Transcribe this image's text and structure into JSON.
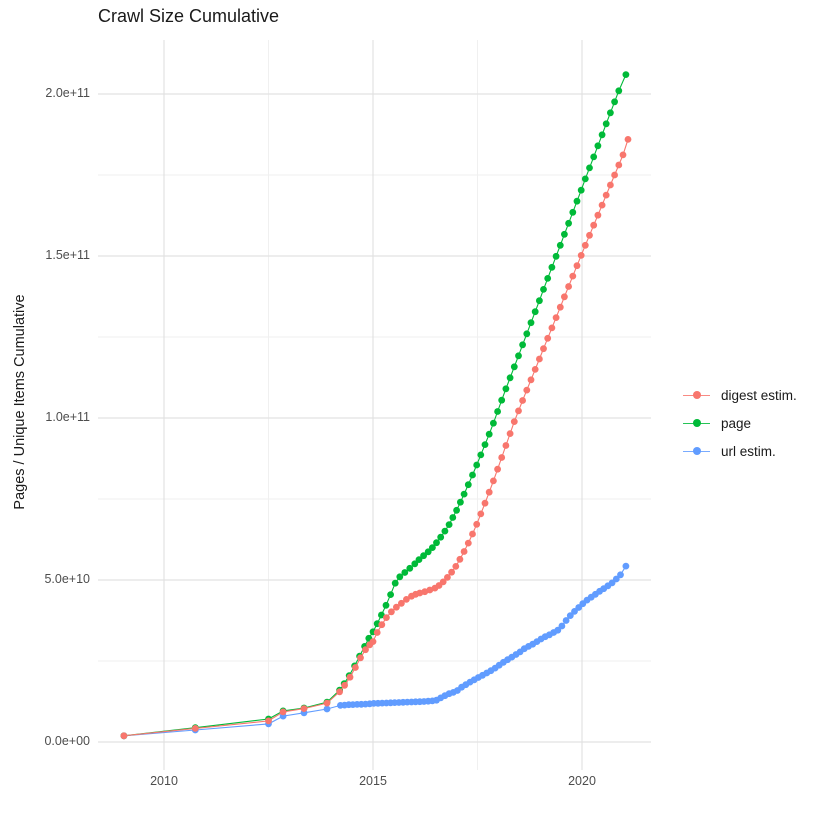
{
  "title": "Crawl Size Cumulative",
  "legend": {
    "items": [
      {
        "label": "digest estim.",
        "color": "#F8766D"
      },
      {
        "label": "page",
        "color": "#00BA38"
      },
      {
        "label": "url estim.",
        "color": "#619CFF"
      }
    ]
  },
  "chart_data": {
    "type": "scatter",
    "title": "Crawl Size Cumulative",
    "xlabel": "",
    "ylabel": "Pages / Unique Items Cumulative",
    "point_units": "x = year (decimal), y = cumulative items in billions (1e9)",
    "grid": "on",
    "legend_position": "right",
    "axes": {
      "x": {
        "range": [
          2008.4,
          2021.65
        ],
        "ticks": [
          {
            "label": "2010",
            "value": 2010
          },
          {
            "label": "2015",
            "value": 2015
          },
          {
            "label": "2020",
            "value": 2020
          }
        ],
        "minor": [
          2012.5,
          2017.5
        ]
      },
      "y": {
        "range": [
          -8.6,
          216.7
        ],
        "ticks": [
          {
            "label": "0.0e+00",
            "value": 0
          },
          {
            "label": "5.0e+10",
            "value": 50
          },
          {
            "label": "1.0e+11",
            "value": 100
          },
          {
            "label": "1.5e+11",
            "value": 150
          },
          {
            "label": "2.0e+11",
            "value": 200
          }
        ],
        "minor": [
          25,
          75,
          125,
          175
        ]
      }
    },
    "series": [
      {
        "name": "url estim.",
        "color": "#619CFF",
        "points": [
          [
            2009.04,
            1.9
          ],
          [
            2010.75,
            3.7
          ],
          [
            2012.5,
            5.6
          ],
          [
            2012.85,
            8.0
          ],
          [
            2013.35,
            9.0
          ],
          [
            2013.9,
            10.2
          ],
          [
            2014.22,
            11.3
          ],
          [
            2014.32,
            11.4
          ],
          [
            2014.42,
            11.5
          ],
          [
            2014.52,
            11.55
          ],
          [
            2014.62,
            11.6
          ],
          [
            2014.72,
            11.65
          ],
          [
            2014.82,
            11.7
          ],
          [
            2014.92,
            11.8
          ],
          [
            2015.02,
            11.9
          ],
          [
            2015.12,
            11.95
          ],
          [
            2015.22,
            12.0
          ],
          [
            2015.32,
            12.05
          ],
          [
            2015.42,
            12.1
          ],
          [
            2015.52,
            12.15
          ],
          [
            2015.62,
            12.2
          ],
          [
            2015.72,
            12.25
          ],
          [
            2015.82,
            12.3
          ],
          [
            2015.92,
            12.35
          ],
          [
            2016.02,
            12.4
          ],
          [
            2016.12,
            12.45
          ],
          [
            2016.22,
            12.5
          ],
          [
            2016.32,
            12.6
          ],
          [
            2016.42,
            12.7
          ],
          [
            2016.52,
            12.9
          ],
          [
            2016.62,
            13.6
          ],
          [
            2016.72,
            14.3
          ],
          [
            2016.82,
            14.9
          ],
          [
            2016.92,
            15.3
          ],
          [
            2017.02,
            15.9
          ],
          [
            2017.12,
            16.9
          ],
          [
            2017.22,
            17.7
          ],
          [
            2017.32,
            18.5
          ],
          [
            2017.42,
            19.2
          ],
          [
            2017.52,
            19.9
          ],
          [
            2017.62,
            20.6
          ],
          [
            2017.72,
            21.3
          ],
          [
            2017.82,
            22.0
          ],
          [
            2017.92,
            22.8
          ],
          [
            2018.02,
            23.7
          ],
          [
            2018.12,
            24.6
          ],
          [
            2018.22,
            25.4
          ],
          [
            2018.32,
            26.2
          ],
          [
            2018.42,
            27.0
          ],
          [
            2018.52,
            27.8
          ],
          [
            2018.62,
            28.8
          ],
          [
            2018.72,
            29.5
          ],
          [
            2018.82,
            30.2
          ],
          [
            2018.92,
            31.0
          ],
          [
            2019.02,
            31.8
          ],
          [
            2019.12,
            32.5
          ],
          [
            2019.22,
            33.1
          ],
          [
            2019.32,
            33.8
          ],
          [
            2019.42,
            34.5
          ],
          [
            2019.52,
            35.8
          ],
          [
            2019.62,
            37.5
          ],
          [
            2019.72,
            39.0
          ],
          [
            2019.82,
            40.3
          ],
          [
            2019.92,
            41.5
          ],
          [
            2020.02,
            42.7
          ],
          [
            2020.12,
            43.8
          ],
          [
            2020.22,
            44.7
          ],
          [
            2020.32,
            45.6
          ],
          [
            2020.42,
            46.5
          ],
          [
            2020.52,
            47.3
          ],
          [
            2020.62,
            48.2
          ],
          [
            2020.72,
            49.1
          ],
          [
            2020.82,
            50.3
          ],
          [
            2020.92,
            51.6
          ],
          [
            2021.05,
            54.3
          ]
        ]
      },
      {
        "name": "page",
        "color": "#00BA38",
        "points": [
          [
            2009.04,
            1.9
          ],
          [
            2010.75,
            4.4
          ],
          [
            2012.5,
            7.1
          ],
          [
            2012.85,
            9.6
          ],
          [
            2013.35,
            10.5
          ],
          [
            2013.9,
            12.3
          ],
          [
            2014.2,
            16.0
          ],
          [
            2014.31,
            18.0
          ],
          [
            2014.43,
            20.5
          ],
          [
            2014.56,
            23.5
          ],
          [
            2014.68,
            26.5
          ],
          [
            2014.8,
            29.5
          ],
          [
            2014.9,
            32.0
          ],
          [
            2015.0,
            34.0
          ],
          [
            2015.1,
            36.5
          ],
          [
            2015.2,
            39.2
          ],
          [
            2015.31,
            42.2
          ],
          [
            2015.42,
            45.5
          ],
          [
            2015.53,
            49.0
          ],
          [
            2015.64,
            51.0
          ],
          [
            2015.76,
            52.3
          ],
          [
            2015.88,
            53.6
          ],
          [
            2016.0,
            55.0
          ],
          [
            2016.1,
            56.3
          ],
          [
            2016.21,
            57.5
          ],
          [
            2016.32,
            58.7
          ],
          [
            2016.42,
            60.0
          ],
          [
            2016.52,
            61.5
          ],
          [
            2016.62,
            63.2
          ],
          [
            2016.72,
            65.1
          ],
          [
            2016.82,
            67.1
          ],
          [
            2016.91,
            69.3
          ],
          [
            2017.0,
            71.5
          ],
          [
            2017.09,
            74.0
          ],
          [
            2017.18,
            76.5
          ],
          [
            2017.28,
            79.4
          ],
          [
            2017.38,
            82.4
          ],
          [
            2017.48,
            85.5
          ],
          [
            2017.58,
            88.6
          ],
          [
            2017.68,
            91.8
          ],
          [
            2017.78,
            95.0
          ],
          [
            2017.88,
            98.4
          ],
          [
            2017.98,
            102.0
          ],
          [
            2018.08,
            105.5
          ],
          [
            2018.18,
            109.0
          ],
          [
            2018.28,
            112.4
          ],
          [
            2018.38,
            115.8
          ],
          [
            2018.48,
            119.2
          ],
          [
            2018.58,
            122.6
          ],
          [
            2018.68,
            126.0
          ],
          [
            2018.78,
            129.4
          ],
          [
            2018.88,
            132.8
          ],
          [
            2018.98,
            136.2
          ],
          [
            2019.08,
            139.7
          ],
          [
            2019.18,
            143.1
          ],
          [
            2019.28,
            146.5
          ],
          [
            2019.38,
            149.9
          ],
          [
            2019.48,
            153.3
          ],
          [
            2019.58,
            156.7
          ],
          [
            2019.68,
            160.1
          ],
          [
            2019.78,
            163.5
          ],
          [
            2019.88,
            166.9
          ],
          [
            2019.98,
            170.3
          ],
          [
            2020.08,
            173.8
          ],
          [
            2020.18,
            177.2
          ],
          [
            2020.28,
            180.6
          ],
          [
            2020.38,
            184.0
          ],
          [
            2020.48,
            187.4
          ],
          [
            2020.58,
            190.8
          ],
          [
            2020.68,
            194.2
          ],
          [
            2020.78,
            197.6
          ],
          [
            2020.88,
            201.0
          ],
          [
            2021.05,
            206.0
          ]
        ]
      },
      {
        "name": "digest estim.",
        "color": "#F8766D",
        "points": [
          [
            2009.04,
            1.9
          ],
          [
            2010.75,
            4.2
          ],
          [
            2012.5,
            6.5
          ],
          [
            2012.85,
            9.3
          ],
          [
            2013.35,
            10.3
          ],
          [
            2013.9,
            12.0
          ],
          [
            2014.2,
            15.5
          ],
          [
            2014.32,
            17.5
          ],
          [
            2014.45,
            20.0
          ],
          [
            2014.58,
            23.0
          ],
          [
            2014.7,
            26.0
          ],
          [
            2014.82,
            28.5
          ],
          [
            2014.92,
            30.0
          ],
          [
            2015.0,
            31.0
          ],
          [
            2015.1,
            33.8
          ],
          [
            2015.21,
            36.2
          ],
          [
            2015.32,
            38.4
          ],
          [
            2015.44,
            40.2
          ],
          [
            2015.56,
            41.6
          ],
          [
            2015.68,
            42.8
          ],
          [
            2015.8,
            44.0
          ],
          [
            2015.92,
            45.0
          ],
          [
            2016.02,
            45.6
          ],
          [
            2016.12,
            46.0
          ],
          [
            2016.24,
            46.4
          ],
          [
            2016.36,
            46.9
          ],
          [
            2016.48,
            47.5
          ],
          [
            2016.58,
            48.3
          ],
          [
            2016.68,
            49.4
          ],
          [
            2016.78,
            50.8
          ],
          [
            2016.88,
            52.4
          ],
          [
            2016.98,
            54.2
          ],
          [
            2017.08,
            56.4
          ],
          [
            2017.18,
            58.8
          ],
          [
            2017.28,
            61.4
          ],
          [
            2017.38,
            64.2
          ],
          [
            2017.48,
            67.2
          ],
          [
            2017.58,
            70.4
          ],
          [
            2017.68,
            73.7
          ],
          [
            2017.78,
            77.1
          ],
          [
            2017.88,
            80.6
          ],
          [
            2017.98,
            84.2
          ],
          [
            2018.08,
            87.8
          ],
          [
            2018.18,
            91.5
          ],
          [
            2018.28,
            95.2
          ],
          [
            2018.38,
            98.9
          ],
          [
            2018.48,
            102.2
          ],
          [
            2018.58,
            105.4
          ],
          [
            2018.68,
            108.6
          ],
          [
            2018.78,
            111.8
          ],
          [
            2018.88,
            115.0
          ],
          [
            2018.98,
            118.2
          ],
          [
            2019.08,
            121.4
          ],
          [
            2019.18,
            124.6
          ],
          [
            2019.28,
            127.8
          ],
          [
            2019.38,
            131.0
          ],
          [
            2019.48,
            134.2
          ],
          [
            2019.58,
            137.4
          ],
          [
            2019.68,
            140.6
          ],
          [
            2019.78,
            143.8
          ],
          [
            2019.88,
            147.0
          ],
          [
            2019.98,
            150.2
          ],
          [
            2020.08,
            153.3
          ],
          [
            2020.18,
            156.4
          ],
          [
            2020.28,
            159.5
          ],
          [
            2020.38,
            162.6
          ],
          [
            2020.48,
            165.7
          ],
          [
            2020.58,
            168.8
          ],
          [
            2020.68,
            171.9
          ],
          [
            2020.78,
            175.0
          ],
          [
            2020.88,
            178.1
          ],
          [
            2020.98,
            181.2
          ],
          [
            2021.1,
            186.0
          ]
        ]
      }
    ]
  },
  "style": {
    "grid_major_color": "#e2e2e2",
    "grid_minor_color": "#efefef",
    "tick_text_color": "#4d4d4d",
    "text_color": "#1a1a1a",
    "background": "#ffffff"
  }
}
